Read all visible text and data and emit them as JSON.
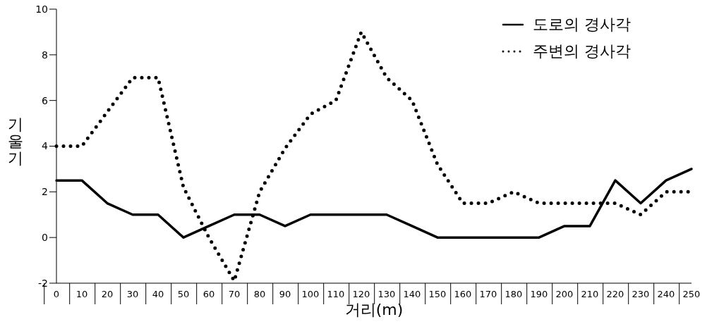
{
  "chart_data": {
    "type": "line",
    "xlabel": "거리(m)",
    "ylabel": "기울기",
    "categories": [
      "0",
      "10",
      "20",
      "30",
      "40",
      "50",
      "60",
      "70",
      "80",
      "90",
      "100",
      "110",
      "120",
      "130",
      "140",
      "150",
      "160",
      "170",
      "180",
      "190",
      "200",
      "210",
      "220",
      "230",
      "240",
      "250"
    ],
    "series": [
      {
        "name": "도로의 경사각",
        "color": "#000000",
        "line_style": "solid",
        "values": [
          2.5,
          2.5,
          1.5,
          1,
          1,
          0,
          0.5,
          1,
          1,
          0.5,
          1,
          1,
          1,
          1,
          0.5,
          0,
          0,
          0,
          0,
          0,
          0.5,
          0.5,
          2.5,
          1.5,
          2.5,
          3
        ]
      },
      {
        "name": "주변의 경사각",
        "color": "#000000",
        "line_style": "dotted",
        "values": [
          4,
          4,
          5.5,
          7,
          7,
          2.2,
          0,
          -1.9,
          2,
          3.9,
          5.4,
          6,
          9,
          7,
          6,
          3.2,
          1.5,
          1.5,
          2,
          1.5,
          1.5,
          1.5,
          1.5,
          1,
          2,
          2
        ]
      }
    ],
    "ylim": [
      -2,
      10
    ],
    "yticks": [
      -2,
      0,
      2,
      4,
      6,
      8,
      10
    ],
    "grid": false,
    "legend": "top right",
    "marker": "none"
  }
}
